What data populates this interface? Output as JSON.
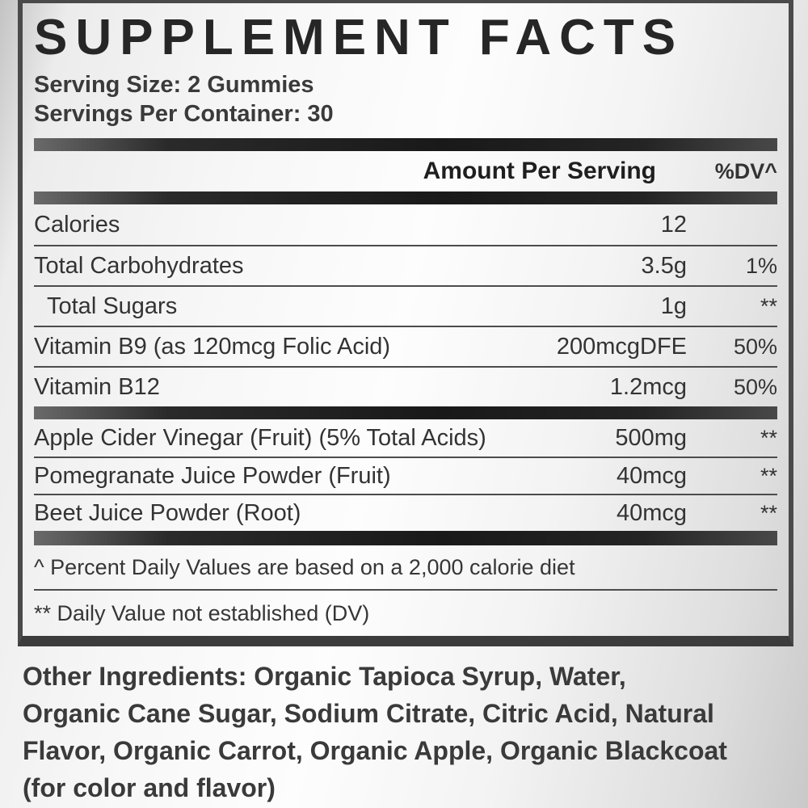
{
  "colors": {
    "bar_dark": "#191919",
    "panel_border": "#4a4a4a",
    "text": "#333333",
    "background_light": "#fdfdfd",
    "background_edge": "#c3c3c3"
  },
  "panel": {
    "title": "SUPPLEMENT FACTS",
    "serving_size": "Serving Size: 2 Gummies",
    "servings_per_container": "Servings Per Container: 30",
    "header": {
      "amount": "Amount Per Serving",
      "dv": "%DV^"
    },
    "rows": [
      {
        "label": "Calories",
        "amount": "12",
        "dv": ""
      },
      {
        "label": "Total Carbohydrates",
        "amount": "3.5g",
        "dv": "1%"
      },
      {
        "label": "Total Sugars",
        "amount": "1g",
        "dv": "**"
      },
      {
        "label": "Vitamin B9 (as 120mcg Folic Acid)",
        "amount": "200mcgDFE",
        "dv": "50%"
      },
      {
        "label": "Vitamin B12",
        "amount": "1.2mcg",
        "dv": "50%"
      },
      {
        "label": "Apple Cider Vinegar (Fruit) (5% Total Acids)",
        "amount": "500mg",
        "dv": "**"
      },
      {
        "label": "Pomegranate Juice Powder (Fruit)",
        "amount": "40mcg",
        "dv": "**"
      },
      {
        "label": "Beet Juice Powder (Root)",
        "amount": "40mcg",
        "dv": "**"
      }
    ],
    "footnotes": {
      "daily_values": "^ Percent Daily Values are based on a 2,000 calorie diet",
      "not_established": "** Daily Value not established (DV)"
    }
  },
  "other_ingredients": {
    "lines": [
      "Other Ingredients: Organic Tapioca Syrup, Water,",
      "Organic Cane Sugar, Sodium Citrate, Citric Acid, Natural",
      "Flavor, Organic Carrot, Organic Apple, Organic Blackcoat",
      "(for color and flavor)"
    ]
  }
}
